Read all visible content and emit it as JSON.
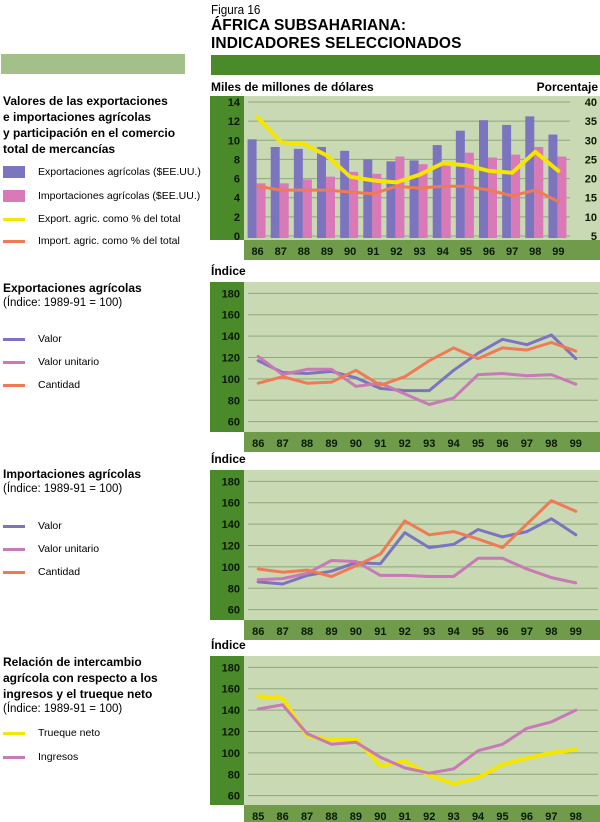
{
  "figure": {
    "label": "Figura 16",
    "title_line1": "ÁFRICA SUBSAHARIANA:",
    "title_line2": "INDICADORES SELECCIONADOS"
  },
  "colors": {
    "panel_dark_green": "#4a8a2a",
    "panel_light_green": "#c9d9b4",
    "band_light": "#a3bf8a",
    "purple": "#7d74c0",
    "pink": "#d979b8",
    "yellow": "#f5e600",
    "orange": "#f07a55",
    "mauve": "#c77ab5"
  },
  "sections": [
    {
      "title_lines": [
        "Valores de las exportaciones",
        "e importaciones agrícolas",
        "y participación en el comercio",
        "total de mercancías"
      ],
      "subtitle": "",
      "legend": [
        {
          "label": "Exportaciones agrícolas ($EE.UU.)",
          "kind": "box",
          "color": "#7d74c0"
        },
        {
          "label": "Importaciones agrícolas ($EE.UU.)",
          "kind": "box",
          "color": "#d979b8"
        },
        {
          "label": "Export. agric. como % del total",
          "kind": "line",
          "color": "#f5e600"
        },
        {
          "label": "Import. agric. como % del total",
          "kind": "line",
          "color": "#f07a55"
        }
      ]
    },
    {
      "title_lines": [
        "Exportaciones agrícolas"
      ],
      "subtitle": "(Índice: 1989-91 = 100)",
      "legend": [
        {
          "label": "Valor",
          "kind": "line",
          "color": "#7d74c0"
        },
        {
          "label": "Valor unitario",
          "kind": "line",
          "color": "#c77ab5"
        },
        {
          "label": "Cantidad",
          "kind": "line",
          "color": "#f07a55"
        }
      ]
    },
    {
      "title_lines": [
        "Importaciones agrícolas"
      ],
      "subtitle": "(Índice: 1989-91 = 100)",
      "legend": [
        {
          "label": "Valor",
          "kind": "line",
          "color": "#7d74c0"
        },
        {
          "label": "Valor unitario",
          "kind": "line",
          "color": "#c77ab5"
        },
        {
          "label": "Cantidad",
          "kind": "line",
          "color": "#f07a55"
        }
      ]
    },
    {
      "title_lines": [
        "Relación de intercambio",
        "agrícola con respecto a los",
        "ingresos y el trueque neto"
      ],
      "subtitle": "(Índice: 1989-91 = 100)",
      "legend": [
        {
          "label": "Trueque neto",
          "kind": "line",
          "color": "#f5e600"
        },
        {
          "label": "Ingresos",
          "kind": "line",
          "color": "#c77ab5"
        }
      ]
    }
  ],
  "chart_data": [
    {
      "type": "bar",
      "title": "Valores de las exportaciones e importaciones agrícolas y participación en el comercio total de mercancías",
      "ylabel": "Miles de millones de dólares",
      "y2label": "Porcentaje",
      "categories": [
        "86",
        "87",
        "88",
        "89",
        "90",
        "91",
        "92",
        "93",
        "94",
        "95",
        "96",
        "97",
        "98",
        "99"
      ],
      "ylim": [
        0,
        14
      ],
      "yticks": [
        0,
        2,
        4,
        6,
        8,
        10,
        12,
        14
      ],
      "y2lim": [
        5,
        40
      ],
      "y2ticks": [
        5,
        10,
        15,
        20,
        25,
        30,
        35,
        40
      ],
      "grid": true,
      "series": [
        {
          "name": "Exportaciones agrícolas ($EE.UU.)",
          "type": "bar",
          "axis": "left",
          "color": "#7d74c0",
          "values": [
            10.1,
            9.3,
            9.1,
            9.3,
            8.9,
            8.0,
            7.8,
            7.9,
            9.5,
            11.0,
            12.1,
            11.6,
            12.5,
            10.6
          ]
        },
        {
          "name": "Importaciones agrícolas ($EE.UU.)",
          "type": "bar",
          "axis": "left",
          "color": "#d979b8",
          "values": [
            5.5,
            5.5,
            5.9,
            6.2,
            6.7,
            6.5,
            8.3,
            7.5,
            7.4,
            8.7,
            8.2,
            8.5,
            9.3,
            8.3
          ]
        },
        {
          "name": "Export. agric. como % del total",
          "type": "line",
          "axis": "right",
          "color": "#f5e600",
          "values": [
            36,
            29.5,
            29,
            26,
            20.5,
            19.5,
            19,
            21,
            24,
            23.5,
            22,
            21.5,
            27,
            22
          ]
        },
        {
          "name": "Import. agric. como % del total",
          "type": "line",
          "axis": "right",
          "color": "#f07a55",
          "values": [
            18,
            17,
            17,
            17,
            16.5,
            16,
            18,
            17.5,
            18,
            18,
            17,
            15.5,
            17,
            14
          ]
        }
      ]
    },
    {
      "type": "line",
      "title": "Exportaciones agrícolas",
      "subtitle": "(Índice: 1989-91 = 100)",
      "ylabel": "Índice",
      "categories": [
        "86",
        "87",
        "88",
        "89",
        "90",
        "91",
        "92",
        "93",
        "94",
        "95",
        "96",
        "97",
        "98",
        "99"
      ],
      "ylim": [
        55,
        185
      ],
      "yticks": [
        60,
        80,
        100,
        120,
        140,
        160,
        180
      ],
      "grid": true,
      "series": [
        {
          "name": "Valor",
          "color": "#7d74c0",
          "values": [
            117,
            106,
            105,
            107,
            101,
            91,
            89,
            89,
            108,
            124,
            137,
            132,
            141,
            119
          ]
        },
        {
          "name": "Valor unitario",
          "color": "#c77ab5",
          "values": [
            121,
            104,
            109,
            109,
            93,
            96,
            86,
            76,
            82,
            104,
            105,
            103,
            104,
            95
          ]
        },
        {
          "name": "Cantidad",
          "color": "#f07a55",
          "values": [
            96,
            102,
            96,
            97,
            108,
            94,
            102,
            117,
            129,
            119,
            129,
            127,
            134,
            126
          ]
        }
      ]
    },
    {
      "type": "line",
      "title": "Importaciones agrícolas",
      "subtitle": "(Índice: 1989-91 = 100)",
      "ylabel": "Índice",
      "categories": [
        "86",
        "87",
        "88",
        "89",
        "90",
        "91",
        "92",
        "93",
        "94",
        "95",
        "96",
        "97",
        "98",
        "99"
      ],
      "ylim": [
        55,
        185
      ],
      "yticks": [
        60,
        80,
        100,
        120,
        140,
        160,
        180
      ],
      "grid": true,
      "series": [
        {
          "name": "Valor",
          "color": "#7d74c0",
          "values": [
            86,
            84,
            92,
            96,
            104,
            103,
            132,
            118,
            121,
            135,
            128,
            133,
            145,
            130
          ]
        },
        {
          "name": "Valor unitario",
          "color": "#c77ab5",
          "values": [
            88,
            89,
            94,
            106,
            105,
            92,
            92,
            91,
            91,
            108,
            108,
            98,
            90,
            85
          ]
        },
        {
          "name": "Cantidad",
          "color": "#f07a55",
          "values": [
            98,
            95,
            97,
            91,
            101,
            112,
            143,
            130,
            133,
            126,
            118,
            140,
            162,
            152
          ]
        }
      ]
    },
    {
      "type": "line",
      "title": "Relación de intercambio agrícola con respecto a los ingresos y el trueque neto",
      "subtitle": "(Índice: 1989-91 = 100)",
      "ylabel": "Índice",
      "categories": [
        "85",
        "86",
        "87",
        "88",
        "89",
        "90",
        "91",
        "92",
        "93",
        "94",
        "95",
        "96",
        "97",
        "98"
      ],
      "ylim": [
        55,
        185
      ],
      "yticks": [
        60,
        80,
        100,
        120,
        140,
        160,
        180
      ],
      "grid": true,
      "series": [
        {
          "name": "Trueque neto",
          "color": "#f5e600",
          "values": [
            153,
            151,
            116,
            112,
            113,
            88,
            92,
            79,
            71,
            77,
            89,
            95,
            100,
            103
          ]
        },
        {
          "name": "Ingresos",
          "color": "#c77ab5",
          "values": [
            141,
            145,
            118,
            108,
            110,
            96,
            86,
            81,
            85,
            102,
            108,
            123,
            129,
            140
          ]
        }
      ]
    }
  ]
}
